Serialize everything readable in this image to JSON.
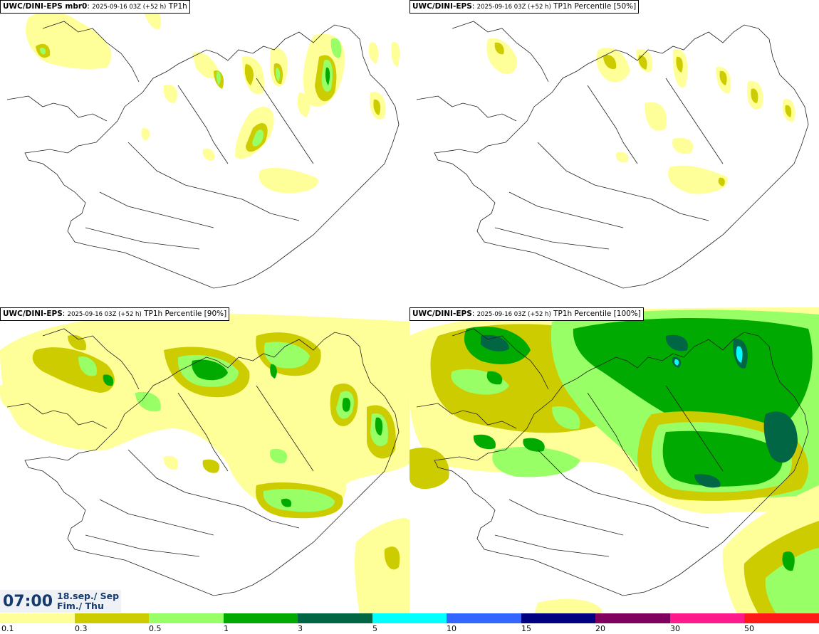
{
  "panels": [
    {
      "model": "UWC/DINI-EPS mbr0",
      "run": "2025-09-16 03Z (+52 h)",
      "field": "TP1h"
    },
    {
      "model": "UWC/DINI-EPS",
      "run": "2025-09-16 03Z (+52 h)",
      "field": "TP1h Percentile [50%]"
    },
    {
      "model": "UWC/DINI-EPS",
      "run": "2025-09-16 03Z (+52 h)",
      "field": "TP1h Percentile [90%]"
    },
    {
      "model": "UWC/DINI-EPS",
      "run": "2025-09-16 03Z (+52 h)",
      "field": "TP1h Percentile [100%]"
    }
  ],
  "valid_time": {
    "time": "07:00",
    "date_line1": "18.sep./ Sep",
    "date_line2": "Fim./ Thu"
  },
  "colorbar": {
    "colors": [
      "#ffff99",
      "#cccc00",
      "#99ff66",
      "#00aa00",
      "#006644",
      "#00ffff",
      "#3366ff",
      "#000080",
      "#800060",
      "#ff1a8c",
      "#ff1a1a"
    ],
    "tick_labels": [
      "0.1",
      "0.3",
      "0.5",
      "1",
      "3",
      "5",
      "10",
      "15",
      "20",
      "30",
      "50"
    ]
  }
}
